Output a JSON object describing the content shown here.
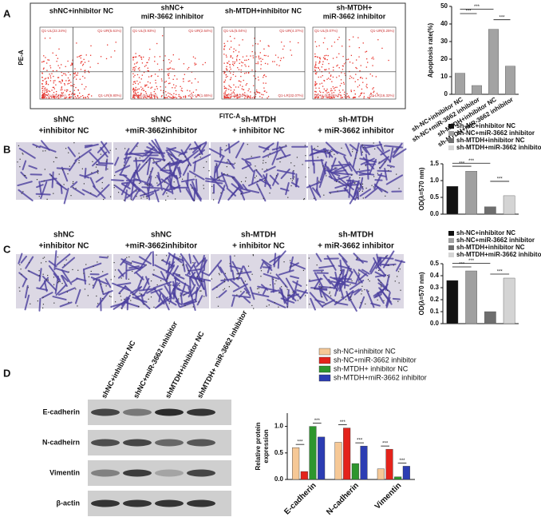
{
  "panel_labels": [
    "A",
    "B",
    "C",
    "D"
  ],
  "flow": {
    "titles": [
      [
        "shNC+inhibitor NC"
      ],
      [
        "shNC+",
        "miR-3662 inhibitor"
      ],
      [
        "sh-MTDH+inhibitor NC"
      ],
      [
        "sh-MTDH+",
        "miR-3662 inhibitor"
      ]
    ],
    "ylabel": "PE-A",
    "xlabel": "FITC-A",
    "quadrants": [
      [
        "Q1-UL(22.34%)",
        "Q1-UR(5.61%)",
        "Q1-LL(62.25%)",
        "Q1-LR(9.80%)"
      ],
      [
        "Q1-UL(0.93%)",
        "Q1-UR(2.64%)",
        "Q1-LL(94.78%)",
        "Q1-LR(1.65%)"
      ],
      [
        "Q1-UL(5.04%)",
        "Q1-UR(4.37%)",
        "Q1-LL(58.52%)",
        "Q1-LR(32.07%)"
      ],
      [
        "Q1-UL(0.07%)",
        "Q1-UR(0.25%)",
        "Q1-LL(83.36%)",
        "Q1-LR(16.32%)"
      ]
    ]
  },
  "micrographs": {
    "b_labels": [
      [
        "shNC",
        "+inhibitor NC"
      ],
      [
        "shNC",
        "+miR-3662inhibitor"
      ],
      [
        "sh-MTDH",
        "+ inhibitor NC"
      ],
      [
        "sh-MTDH",
        "+ miR-3662 inhibitor"
      ]
    ],
    "c_labels": [
      [
        "shNC",
        "+inhibitor NC"
      ],
      [
        "shNC",
        "+miR-3662inhibitor"
      ],
      [
        "sh-MTDH",
        "+ inhibitor NC"
      ],
      [
        "sh-MTDH",
        "+ miR-3662 inhibitor"
      ]
    ]
  },
  "western": {
    "lanes": [
      "shNC+inhibitor NC",
      "shNC+miR-3662 inhibitor",
      "shMTDH+inhibitor NC",
      "shMTDH+ miR-3662 inhibitor"
    ],
    "rows": [
      "E-cadherin",
      "N-cadheirn",
      "Vimentin",
      "β-actin"
    ]
  },
  "chart_data": [
    {
      "type": "bar",
      "ylabel": "Apoptosis rate(%)",
      "categories": [
        "sh-NC+inhibitor NC",
        "sh-NC+miR-3662 inhibitor",
        "sh-MTDH+inhibitor NC",
        "sh-MTDH+miR-3662 inhibitor"
      ],
      "values": [
        12,
        5,
        37,
        16
      ],
      "color": "#a3a3a3",
      "ylim": [
        0,
        50
      ],
      "yticks": [
        0,
        10,
        20,
        30,
        40,
        50
      ],
      "annotations": [
        "***",
        "***",
        "***"
      ]
    },
    {
      "type": "bar",
      "ylabel": "OD(λ=570 nm)",
      "legend": true,
      "categories": [
        "sh-NC+inhibitor NC",
        "sh-NC+miR-3662 inhibitor",
        "sh-MTDH+inhibitor NC",
        "sh-MTDH+miR-3662 inhibitor"
      ],
      "values": [
        0.83,
        1.28,
        0.22,
        0.55
      ],
      "colors": [
        "#111111",
        "#a0a0a0",
        "#6e6e6e",
        "#d4d4d4"
      ],
      "ylim": [
        0,
        1.5
      ],
      "yticks": [
        {
          "value": 0,
          "label": "0.0"
        },
        0.5,
        {
          "value": 1,
          "label": "1.0"
        },
        1.5
      ],
      "annotations": [
        "***",
        "***",
        "***"
      ]
    },
    {
      "type": "bar",
      "ylabel": "OD(λ=570 nm)",
      "legend": true,
      "categories": [
        "sh-NC+inhibitor NC",
        "sh-NC+miR-3662 inhibitor",
        "sh-MTDH+inhibitor NC",
        "sh-MTDH+miR-3662 inhibitor"
      ],
      "values": [
        0.36,
        0.44,
        0.1,
        0.38
      ],
      "colors": [
        "#111111",
        "#a0a0a0",
        "#6e6e6e",
        "#d4d4d4"
      ],
      "ylim": [
        0,
        0.5
      ],
      "yticks": [
        {
          "value": 0,
          "label": "0.0"
        },
        0.1,
        0.2,
        0.3,
        0.4,
        0.5
      ],
      "annotations": [
        "***",
        "***",
        "***"
      ]
    },
    {
      "type": "grouped_bar",
      "ylabel": [
        "Relative protein",
        "expression"
      ],
      "categories": [
        "E-cadherin",
        "N-cadherin",
        "Vimentin"
      ],
      "series": [
        {
          "name": "sh-NC+inhibitor NC",
          "color": "#f6c896",
          "values": [
            0.6,
            0.7,
            0.2
          ]
        },
        {
          "name": "sh-NC+miR-3662 inhibitor",
          "color": "#e4231b",
          "values": [
            0.15,
            0.97,
            0.57
          ]
        },
        {
          "name": "sh-MTDH+ inhibitor NC",
          "color": "#2e962e",
          "values": [
            1.0,
            0.3,
            0.05
          ]
        },
        {
          "name": "sh-MTDH+miR-3662 inhibitor",
          "color": "#2c3db3",
          "values": [
            0.8,
            0.63,
            0.25
          ]
        }
      ],
      "ylim": [
        0,
        1.25
      ],
      "yticks": [
        {
          "value": 0,
          "label": "0.0"
        },
        0.5,
        {
          "value": 1,
          "label": "1.0"
        }
      ],
      "annotations": [
        "***",
        "***",
        "***",
        "***",
        "***",
        "***"
      ]
    }
  ]
}
